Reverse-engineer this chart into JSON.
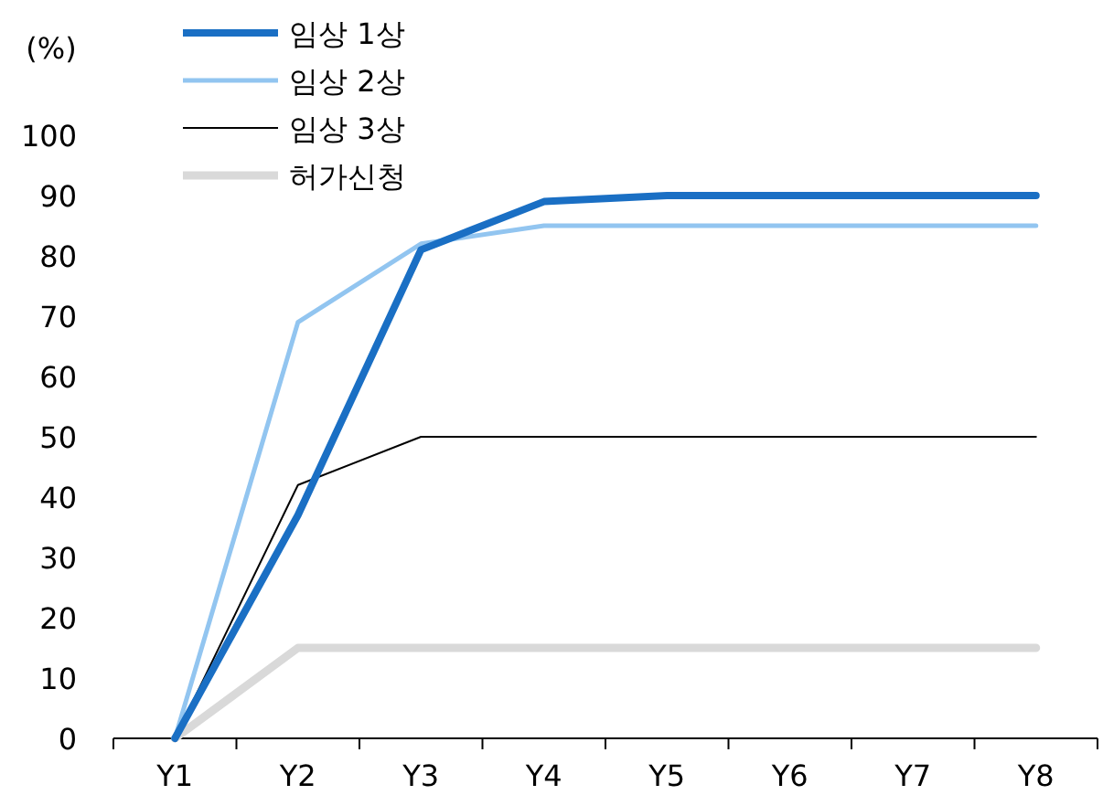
{
  "chart_data": {
    "type": "line",
    "ylabel": "(%)",
    "categories": [
      "Y1",
      "Y2",
      "Y3",
      "Y4",
      "Y5",
      "Y6",
      "Y7",
      "Y8"
    ],
    "ylim": [
      0,
      100
    ],
    "yticks": [
      0,
      10,
      20,
      30,
      40,
      50,
      60,
      70,
      80,
      90,
      100
    ],
    "legend": "top left",
    "series": [
      {
        "name": "임상 1상",
        "color": "#1a6fc4",
        "values": [
          0,
          37,
          81,
          89,
          90,
          90,
          90,
          90
        ]
      },
      {
        "name": "임상 2상",
        "color": "#92c5f0",
        "values": [
          0,
          69,
          82,
          85,
          85,
          85,
          85,
          85
        ]
      },
      {
        "name": "임상 3상",
        "color": "#000000",
        "values": [
          0,
          42,
          50,
          50,
          50,
          50,
          50,
          50
        ]
      },
      {
        "name": "허가신청",
        "color": "#d9d9d9",
        "values": [
          0,
          15,
          15,
          15,
          15,
          15,
          15,
          15
        ]
      }
    ]
  }
}
